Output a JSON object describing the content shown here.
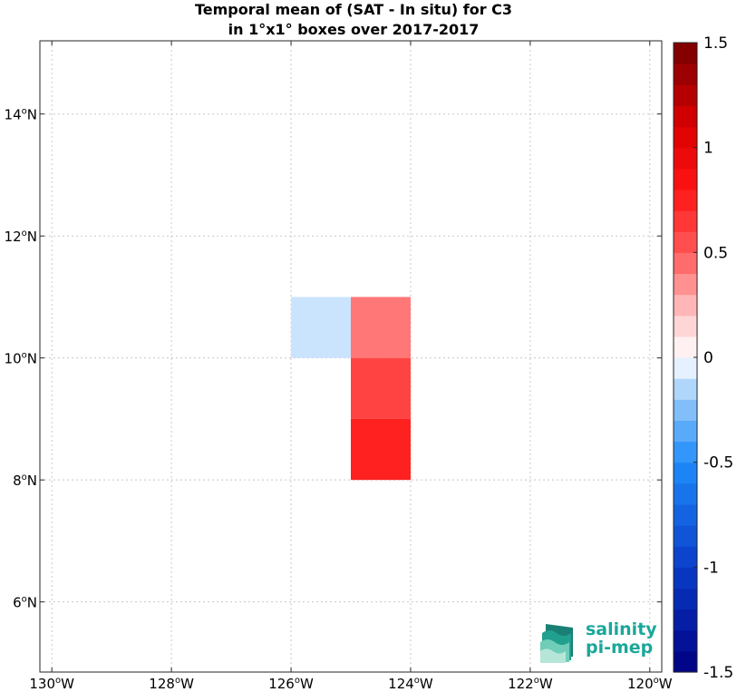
{
  "title": {
    "line1": "Temporal mean of (SAT - In situ) for C3",
    "line2": "in 1°x1° boxes over 2017-2017"
  },
  "chart_data": {
    "type": "heatmap",
    "title": "Temporal mean of (SAT - In situ) for C3 in 1°x1° boxes over 2017-2017",
    "xlabel": "",
    "ylabel": "",
    "xlim": [
      -130.2,
      -119.8
    ],
    "ylim": [
      4.85,
      15.2
    ],
    "grid": true,
    "x_ticks": [
      {
        "value": -130,
        "deg": "130",
        "dir": "W"
      },
      {
        "value": -128,
        "deg": "128",
        "dir": "W"
      },
      {
        "value": -126,
        "deg": "126",
        "dir": "W"
      },
      {
        "value": -124,
        "deg": "124",
        "dir": "W"
      },
      {
        "value": -122,
        "deg": "122",
        "dir": "W"
      },
      {
        "value": -120,
        "deg": "120",
        "dir": "W"
      }
    ],
    "y_ticks": [
      {
        "value": 6,
        "deg": "6",
        "dir": "N"
      },
      {
        "value": 8,
        "deg": "8",
        "dir": "N"
      },
      {
        "value": 10,
        "deg": "10",
        "dir": "N"
      },
      {
        "value": 12,
        "deg": "12",
        "dir": "N"
      },
      {
        "value": 14,
        "deg": "14",
        "dir": "N"
      }
    ],
    "cells": [
      {
        "lon": [
          -126,
          -125
        ],
        "lat": [
          10,
          11
        ],
        "value": -0.1
      },
      {
        "lon": [
          -125,
          -124
        ],
        "lat": [
          10,
          11
        ],
        "value": 0.42
      },
      {
        "lon": [
          -125,
          -124
        ],
        "lat": [
          9,
          10
        ],
        "value": 0.6
      },
      {
        "lon": [
          -125,
          -124
        ],
        "lat": [
          8,
          9
        ],
        "value": 0.75
      }
    ],
    "colorbar": {
      "range": [
        -1.5,
        1.5
      ],
      "levels": 30,
      "labels": [
        "1.5",
        "1",
        "0.5",
        "0",
        "-0.5",
        "-1",
        "-1.5"
      ],
      "label_values": [
        1.5,
        1,
        0.5,
        0,
        -0.5,
        -1,
        -1.5
      ]
    }
  },
  "logo": {
    "line1": "salinity",
    "line2": "pi-mep",
    "color": "#1aa79a"
  }
}
